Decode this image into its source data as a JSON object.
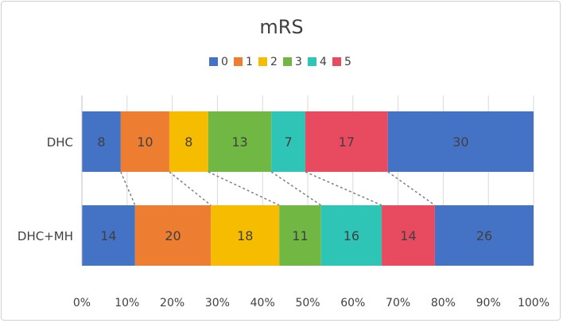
{
  "chart_data": {
    "type": "bar",
    "orientation": "horizontal",
    "stacking": "percent",
    "title": "mRS",
    "categories": [
      "DHC",
      "DHC+MH"
    ],
    "series": [
      {
        "name": "0",
        "values": [
          8,
          14
        ]
      },
      {
        "name": "1",
        "values": [
          10,
          20
        ]
      },
      {
        "name": "2",
        "values": [
          8,
          18
        ]
      },
      {
        "name": "3",
        "values": [
          13,
          11
        ]
      },
      {
        "name": "4",
        "values": [
          7,
          16
        ]
      },
      {
        "name": "5",
        "values": [
          17,
          14
        ]
      },
      {
        "name": "",
        "values": [
          30,
          26
        ]
      }
    ],
    "colors": [
      "#4472c4",
      "#ed7d31",
      "#f5bc00",
      "#70b843",
      "#2ec4b6",
      "#e84a5f",
      "#4472c4"
    ],
    "xlim": [
      0,
      100
    ],
    "x_ticks": [
      "0%",
      "10%",
      "20%",
      "30%",
      "40%",
      "50%",
      "60%",
      "70%",
      "80%",
      "90%",
      "100%"
    ],
    "legend_position": "top",
    "series_lines": true,
    "grid": true
  }
}
